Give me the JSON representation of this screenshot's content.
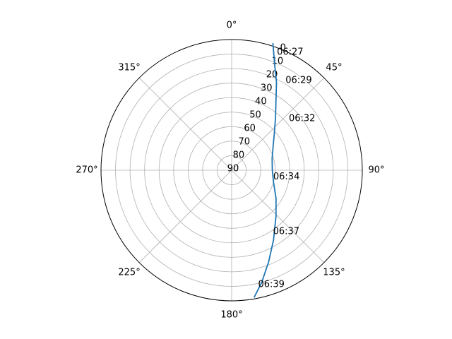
{
  "chart_data": {
    "type": "polar-line",
    "theta_direction": "clockwise",
    "theta_zero_location": "top",
    "theta_tick_labels": [
      "0°",
      "45°",
      "90°",
      "135°",
      "180°",
      "225°",
      "270°",
      "315°"
    ],
    "theta_ticks_deg": [
      0,
      45,
      90,
      135,
      180,
      225,
      270,
      315
    ],
    "r_axis": "elevation (deg), 90 at center, 0 at rim",
    "r_tick_labels": [
      "0",
      "10",
      "20",
      "30",
      "40",
      "50",
      "60",
      "70",
      "80",
      "90"
    ],
    "r_ticks": [
      0,
      10,
      20,
      30,
      40,
      50,
      60,
      70,
      80,
      90
    ],
    "grid": true,
    "line_color": "#1f77b4",
    "series": [
      {
        "points": [
          {
            "az": 18,
            "el": -2
          },
          {
            "az": 22,
            "el": 11
          },
          {
            "az": 27,
            "el": 22
          },
          {
            "az": 33,
            "el": 34
          },
          {
            "az": 40,
            "el": 43
          },
          {
            "az": 49,
            "el": 51
          },
          {
            "az": 60,
            "el": 57
          },
          {
            "az": 74,
            "el": 61
          },
          {
            "az": 90,
            "el": 62
          },
          {
            "az": 106,
            "el": 60
          },
          {
            "az": 122,
            "el": 54
          },
          {
            "az": 136,
            "el": 46
          },
          {
            "az": 149,
            "el": 34
          },
          {
            "az": 158,
            "el": 22
          },
          {
            "az": 165,
            "el": 10
          },
          {
            "az": 170,
            "el": 1
          }
        ]
      }
    ],
    "annotations": [
      {
        "text": "06:27",
        "az": 21,
        "el": 3
      },
      {
        "text": "06:29",
        "az": 31,
        "el": 18
      },
      {
        "text": "06:32",
        "az": 48,
        "el": 37
      },
      {
        "text": "06:34",
        "az": 99,
        "el": 61
      },
      {
        "text": "06:37",
        "az": 146,
        "el": 39
      },
      {
        "text": "06:39",
        "az": 167,
        "el": 9
      }
    ]
  }
}
